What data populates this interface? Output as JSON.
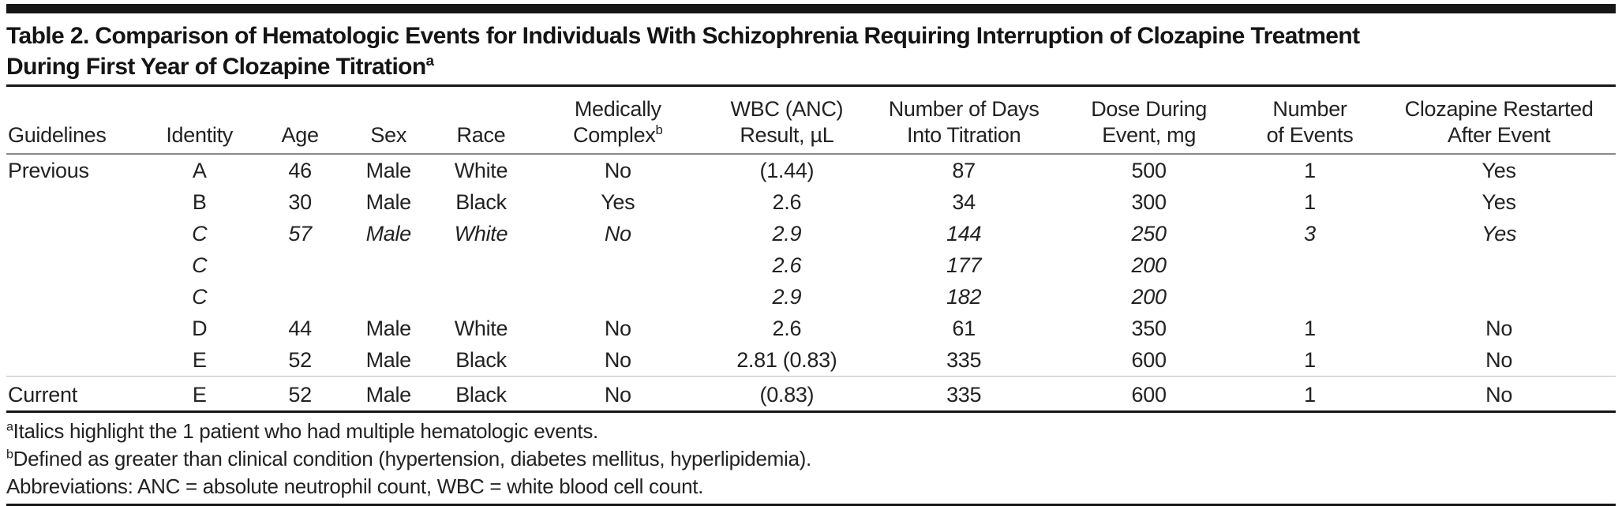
{
  "table": {
    "title": {
      "line1": "Table 2. Comparison of Hematologic Events for Individuals With Schizophrenia Requiring Interruption of Clozapine Treatment",
      "line2": "During First Year of Clozapine Titration",
      "line2_sup": "a"
    },
    "columns": [
      {
        "id": "guidelines",
        "line1": "Guidelines"
      },
      {
        "id": "identity",
        "line1": "Identity"
      },
      {
        "id": "age",
        "line1": "Age"
      },
      {
        "id": "sex",
        "line1": "Sex"
      },
      {
        "id": "race",
        "line1": "Race"
      },
      {
        "id": "medically_complex",
        "line1": "Medically",
        "line2": "Complex",
        "sup": "b"
      },
      {
        "id": "wbc_anc",
        "line1": "WBC (ANC)",
        "line2": "Result, µL"
      },
      {
        "id": "days",
        "line1": "Number of Days",
        "line2": "Into Titration"
      },
      {
        "id": "dose",
        "line1": "Dose During",
        "line2": "Event, mg"
      },
      {
        "id": "events",
        "line1": "Number",
        "line2": "of Events"
      },
      {
        "id": "restarted",
        "line1": "Clozapine Restarted",
        "line2": "After Event"
      }
    ],
    "rows": [
      {
        "italic": false,
        "cells": [
          "Previous",
          "A",
          "46",
          "Male",
          "White",
          "No",
          "(1.44)",
          "87",
          "500",
          "1",
          "Yes"
        ]
      },
      {
        "italic": false,
        "cells": [
          "",
          "B",
          "30",
          "Male",
          "Black",
          "Yes",
          "2.6",
          "34",
          "300",
          "1",
          "Yes"
        ]
      },
      {
        "italic": true,
        "cells": [
          "",
          "C",
          "57",
          "Male",
          "White",
          "No",
          "2.9",
          "144",
          "250",
          "3",
          "Yes"
        ]
      },
      {
        "italic": true,
        "cells": [
          "",
          "C",
          "",
          "",
          "",
          "",
          "2.6",
          "177",
          "200",
          "",
          ""
        ]
      },
      {
        "italic": true,
        "cells": [
          "",
          "C",
          "",
          "",
          "",
          "",
          "2.9",
          "182",
          "200",
          "",
          ""
        ]
      },
      {
        "italic": false,
        "cells": [
          "",
          "D",
          "44",
          "Male",
          "White",
          "No",
          "2.6",
          "61",
          "350",
          "1",
          "No"
        ]
      },
      {
        "italic": false,
        "cells": [
          "",
          "E",
          "52",
          "Male",
          "Black",
          "No",
          "2.81 (0.83)",
          "335",
          "600",
          "1",
          "No"
        ]
      },
      {
        "italic": false,
        "group_start": true,
        "cells": [
          "Current",
          "E",
          "52",
          "Male",
          "Black",
          "No",
          "(0.83)",
          "335",
          "600",
          "1",
          "No"
        ]
      }
    ],
    "footnotes": [
      {
        "sup": "a",
        "text": "Italics highlight the 1 patient who had multiple hematologic events."
      },
      {
        "sup": "b",
        "text": "Defined as greater than clinical condition (hypertension, diabetes mellitus, hyperlipidemia)."
      },
      {
        "sup": "",
        "text": "Abbreviations: ANC = absolute neutrophil count, WBC = white blood cell count."
      }
    ]
  }
}
